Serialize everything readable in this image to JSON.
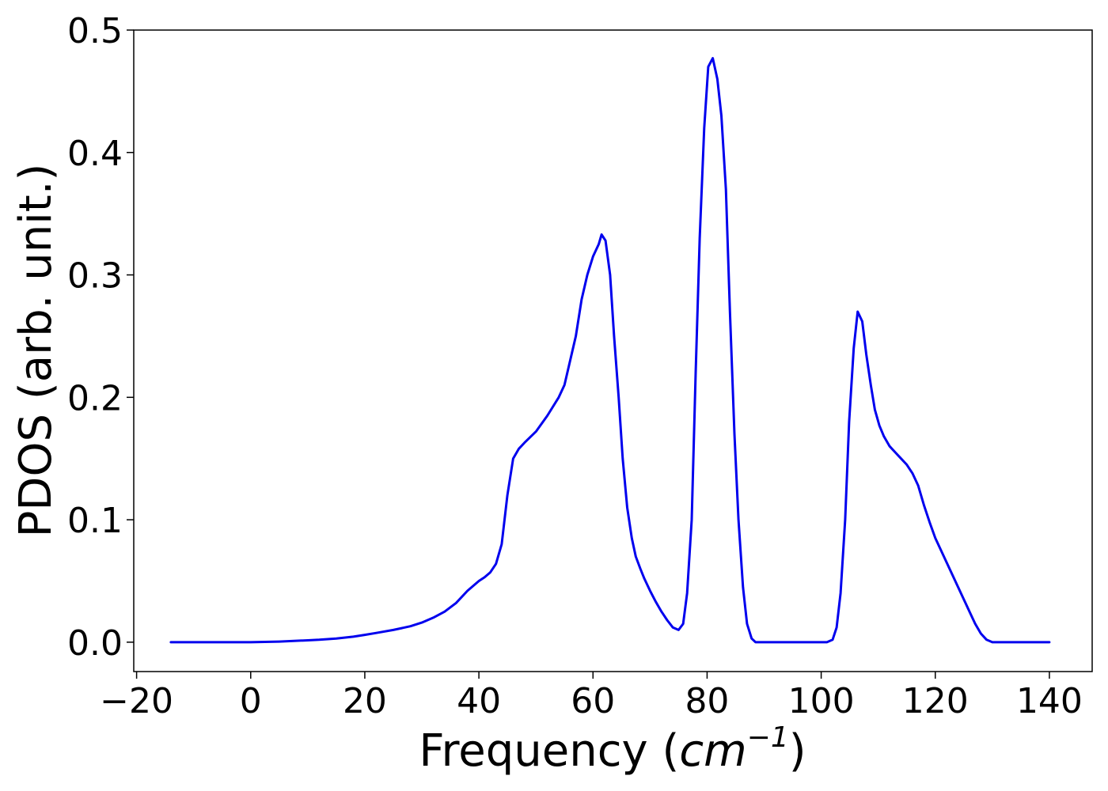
{
  "chart_data": {
    "type": "line",
    "title": "",
    "xlabel_prefix": "Frequency (",
    "xlabel_unit": "cm",
    "xlabel_exponent": "−1",
    "xlabel_suffix": ")",
    "ylabel": "PDOS (arb. unit.)",
    "xlim": [
      -20.5,
      147.5
    ],
    "ylim": [
      -0.024,
      0.5
    ],
    "xticks": [
      -20,
      0,
      20,
      40,
      60,
      80,
      100,
      120,
      140
    ],
    "xtick_labels": [
      "−20",
      "0",
      "20",
      "40",
      "60",
      "80",
      "100",
      "120",
      "140"
    ],
    "yticks": [
      0.0,
      0.1,
      0.2,
      0.3,
      0.4,
      0.5
    ],
    "ytick_labels": [
      "0.0",
      "0.1",
      "0.2",
      "0.3",
      "0.4",
      "0.5"
    ],
    "grid": false,
    "line_color": "#0000ee",
    "series": [
      {
        "x": [
          -14,
          -10,
          -5,
          0,
          5,
          10,
          12,
          15,
          18,
          20,
          22,
          25,
          28,
          30,
          32,
          34,
          36,
          38,
          40,
          41,
          42,
          43,
          44,
          45,
          46,
          47,
          48,
          50,
          52,
          54,
          55,
          56,
          57,
          58,
          59,
          60,
          61,
          61.5,
          62.2,
          63,
          63.7,
          64.5,
          65.2,
          66,
          66.8,
          67.5,
          68.3,
          69,
          70,
          71,
          72,
          73,
          74,
          75,
          75.8,
          76.5,
          77.3,
          78,
          78.7,
          79.5,
          80.2,
          81,
          81.8,
          82.5,
          83.3,
          84,
          84.8,
          85.5,
          86.3,
          87,
          87.8,
          88.5,
          89.3,
          90,
          92,
          95,
          100,
          101,
          102,
          102.7,
          103.4,
          104.2,
          104.9,
          105.7,
          106.4,
          107.2,
          107.9,
          108.7,
          109.4,
          110.2,
          111,
          112,
          113,
          114,
          115,
          116,
          117,
          118,
          119,
          120,
          121,
          122,
          123,
          124,
          125,
          126,
          127,
          128,
          129,
          130,
          131,
          135,
          140
        ],
        "y": [
          0.0,
          0.0,
          0.0,
          0.0,
          0.0005,
          0.0015,
          0.002,
          0.003,
          0.0045,
          0.006,
          0.0075,
          0.01,
          0.013,
          0.016,
          0.02,
          0.025,
          0.032,
          0.042,
          0.05,
          0.053,
          0.057,
          0.064,
          0.08,
          0.12,
          0.15,
          0.158,
          0.163,
          0.172,
          0.185,
          0.2,
          0.21,
          0.23,
          0.25,
          0.28,
          0.3,
          0.315,
          0.325,
          0.333,
          0.328,
          0.3,
          0.25,
          0.2,
          0.15,
          0.11,
          0.085,
          0.07,
          0.06,
          0.052,
          0.042,
          0.033,
          0.025,
          0.018,
          0.012,
          0.01,
          0.015,
          0.04,
          0.1,
          0.22,
          0.33,
          0.42,
          0.47,
          0.477,
          0.46,
          0.43,
          0.37,
          0.27,
          0.17,
          0.1,
          0.045,
          0.015,
          0.003,
          0.0,
          0.0,
          0.0,
          0.0,
          0.0,
          0.0,
          0.0,
          0.002,
          0.012,
          0.04,
          0.1,
          0.18,
          0.24,
          0.27,
          0.262,
          0.235,
          0.21,
          0.19,
          0.177,
          0.168,
          0.16,
          0.155,
          0.15,
          0.145,
          0.138,
          0.128,
          0.112,
          0.098,
          0.085,
          0.075,
          0.065,
          0.055,
          0.045,
          0.035,
          0.025,
          0.015,
          0.007,
          0.002,
          0.0,
          0.0,
          0.0,
          0.0
        ]
      }
    ]
  }
}
